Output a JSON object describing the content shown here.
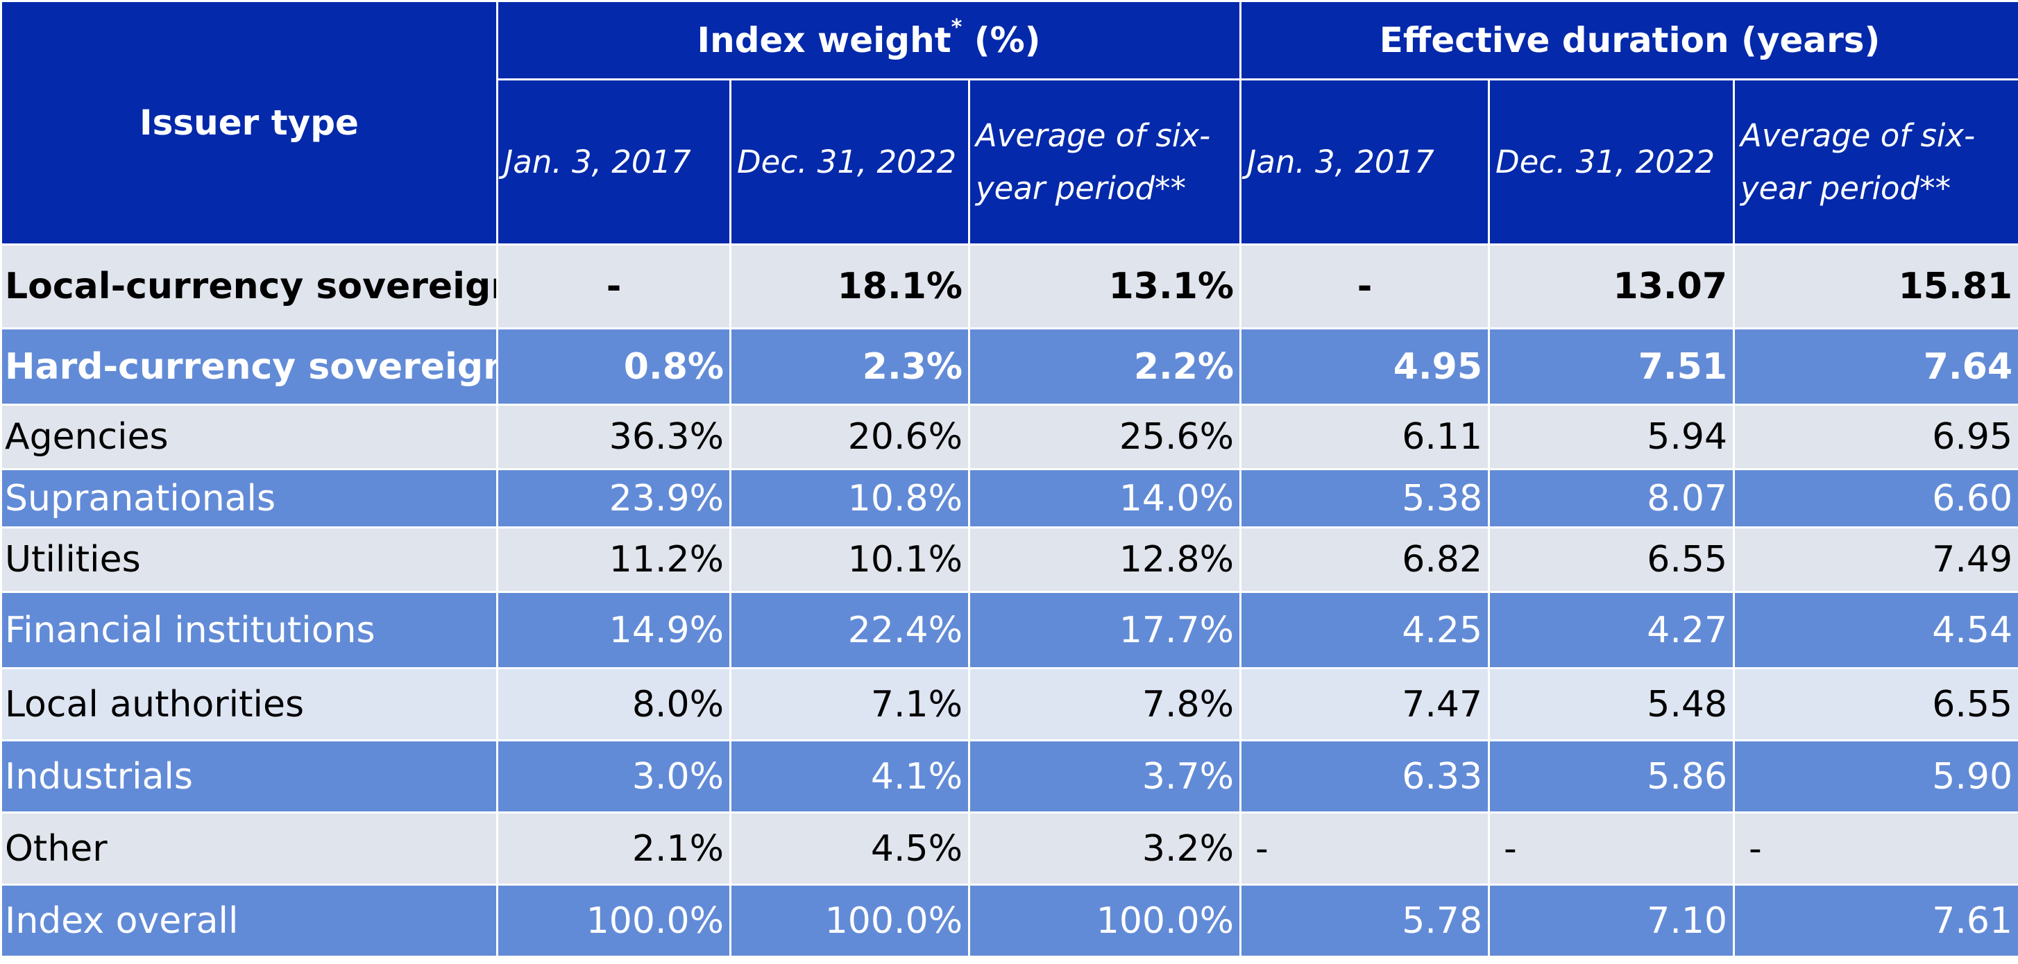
{
  "colors": {
    "header_bg": "#0429aa",
    "row_light": "#e0e4ec",
    "row_dark": "#628bd7",
    "text_dark": "#000000",
    "text_light": "#ffffff"
  },
  "chart_data": {
    "type": "table",
    "header": {
      "issuer_type": "Issuer type",
      "group_weight": "Index weight",
      "group_weight_mark": "*",
      "group_weight_unit": "(%)",
      "group_duration": "Effective duration (years)",
      "sub_columns": [
        "Jan. 3, 2017",
        "Dec. 31, 2022",
        "Average of six-year period**",
        "Jan. 3, 2017",
        "Dec. 31, 2022",
        "Average of six-year period**"
      ]
    },
    "rows": [
      {
        "label": "Local-currency sovereign",
        "values": [
          "-",
          "18.1%",
          "13.1%",
          "-",
          "13.07",
          "15.81"
        ]
      },
      {
        "label": "Hard-currency sovereign",
        "values": [
          "0.8%",
          "2.3%",
          "2.2%",
          "4.95",
          "7.51",
          "7.64"
        ]
      },
      {
        "label": "Agencies",
        "values": [
          "36.3%",
          "20.6%",
          "25.6%",
          "6.11",
          "5.94",
          "6.95"
        ]
      },
      {
        "label": "Supranationals",
        "values": [
          "23.9%",
          "10.8%",
          "14.0%",
          "5.38",
          "8.07",
          "6.60"
        ]
      },
      {
        "label": "Utilities",
        "values": [
          "11.2%",
          "10.1%",
          "12.8%",
          "6.82",
          "6.55",
          "7.49"
        ]
      },
      {
        "label": "Financial institutions",
        "values": [
          "14.9%",
          "22.4%",
          "17.7%",
          "4.25",
          "4.27",
          "4.54"
        ]
      },
      {
        "label": "Local authorities",
        "values": [
          "8.0%",
          "7.1%",
          "7.8%",
          "7.47",
          "5.48",
          "6.55"
        ]
      },
      {
        "label": "Industrials",
        "values": [
          "3.0%",
          "4.1%",
          "3.7%",
          "6.33",
          "5.86",
          "5.90"
        ]
      },
      {
        "label": "Other",
        "values": [
          "2.1%",
          "4.5%",
          "3.2%",
          "-",
          "-",
          "-"
        ]
      },
      {
        "label": "Index overall",
        "values": [
          "100.0%",
          "100.0%",
          "100.0%",
          "5.78",
          "7.10",
          "7.61"
        ]
      }
    ]
  }
}
